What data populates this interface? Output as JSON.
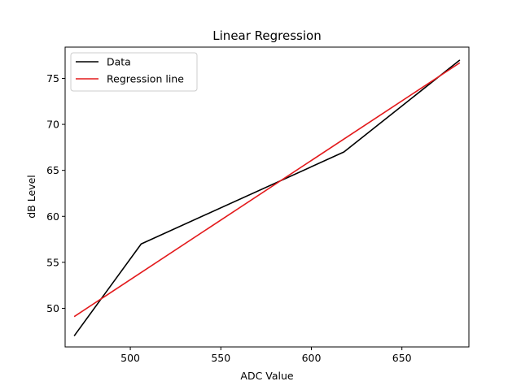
{
  "chart_data": {
    "type": "line",
    "title": "Linear Regression",
    "xlabel": "ADC Value",
    "ylabel": "dB Level",
    "xlim": [
      464,
      687
    ],
    "ylim": [
      45.8,
      78.4
    ],
    "xticks": [
      500,
      550,
      600,
      650
    ],
    "yticks": [
      50,
      55,
      60,
      65,
      70,
      75
    ],
    "grid": false,
    "legend_position": "top-left",
    "series": [
      {
        "name": "Data",
        "color": "#000000",
        "x": [
          469,
          506,
          618,
          682
        ],
        "y": [
          47,
          57,
          67,
          77
        ]
      },
      {
        "name": "Regression line",
        "color": "#e31a1c",
        "x": [
          469,
          682
        ],
        "y": [
          49.1,
          76.7
        ]
      }
    ]
  }
}
